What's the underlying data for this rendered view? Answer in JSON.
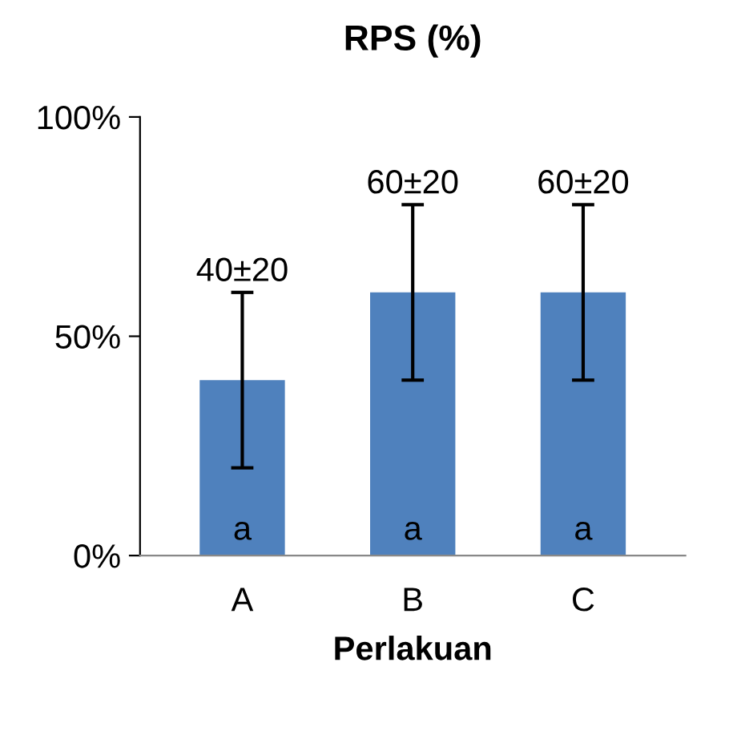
{
  "chart_data": {
    "type": "bar",
    "title": "RPS (%)",
    "xlabel": "Perlakuan",
    "categories": [
      "A",
      "B",
      "C"
    ],
    "values": [
      40,
      60,
      60
    ],
    "errors": [
      20,
      20,
      20
    ],
    "value_labels": [
      "40±20",
      "60±20",
      "60±20"
    ],
    "color": "#4f81bd",
    "ylim": [
      0,
      100
    ],
    "yticks": [
      {
        "value": 0,
        "label": "0%"
      },
      {
        "value": 50,
        "label": "50%"
      },
      {
        "value": 100,
        "label": "100%"
      }
    ],
    "annotations": [
      "a",
      "a",
      "a"
    ],
    "grid": false,
    "legend": false
  }
}
